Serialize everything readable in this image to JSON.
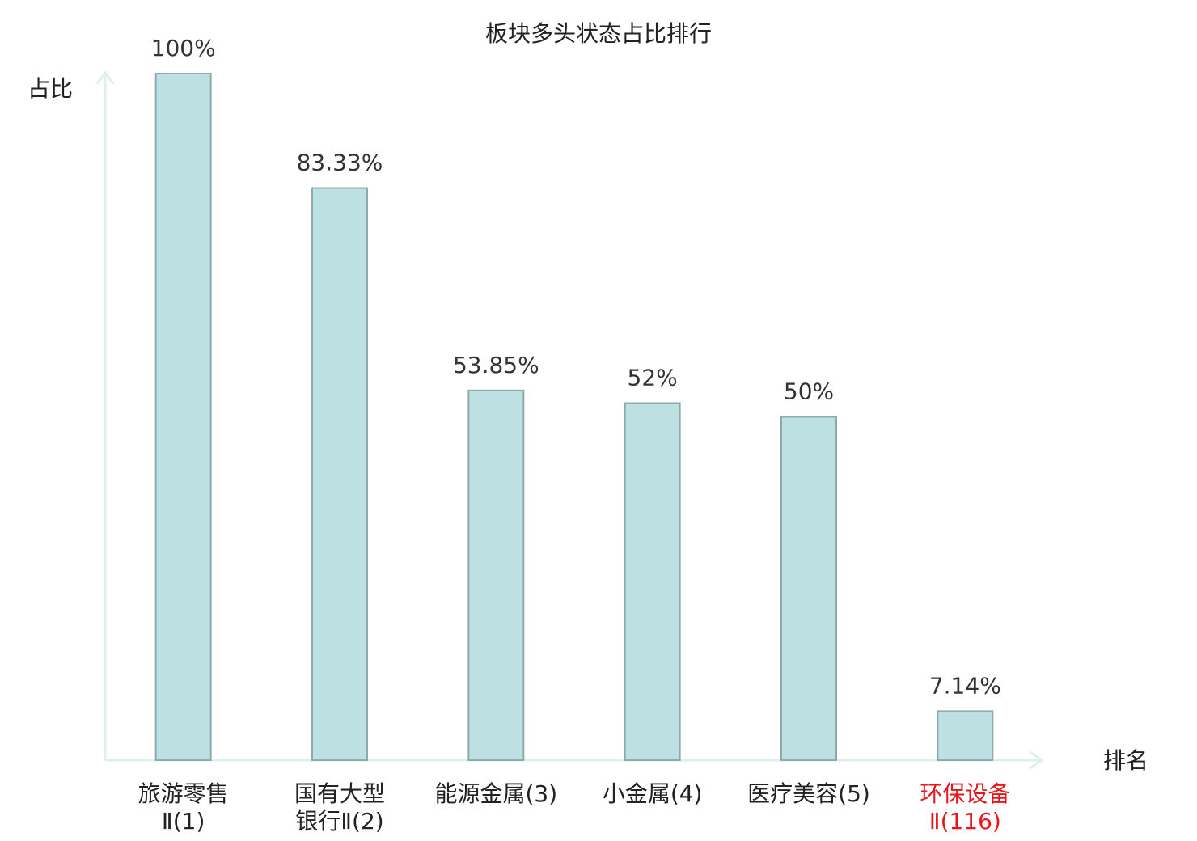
{
  "chart_data": {
    "type": "bar",
    "title": "板块多头状态占比排行",
    "y_label": "占比",
    "x_label": "排名",
    "categories": [
      "旅游零售\nⅡ(1)",
      "国有大型\n银行Ⅱ(2)",
      "能源金属(3)",
      "小金属(4)",
      "医疗美容(5)",
      "环保设备\nⅡ(116)"
    ],
    "values": [
      100,
      83.33,
      53.85,
      52,
      50,
      7.14
    ],
    "value_labels": [
      "100%",
      "83.33%",
      "53.85%",
      "52%",
      "50%",
      "7.14%"
    ],
    "color": "#bde0e3",
    "edge_color": "#8faaac",
    "category_label_colors": [
      "#222222",
      "#222222",
      "#222222",
      "#222222",
      "#222222",
      "#e8161b"
    ],
    "ylim": [
      0,
      100
    ]
  }
}
